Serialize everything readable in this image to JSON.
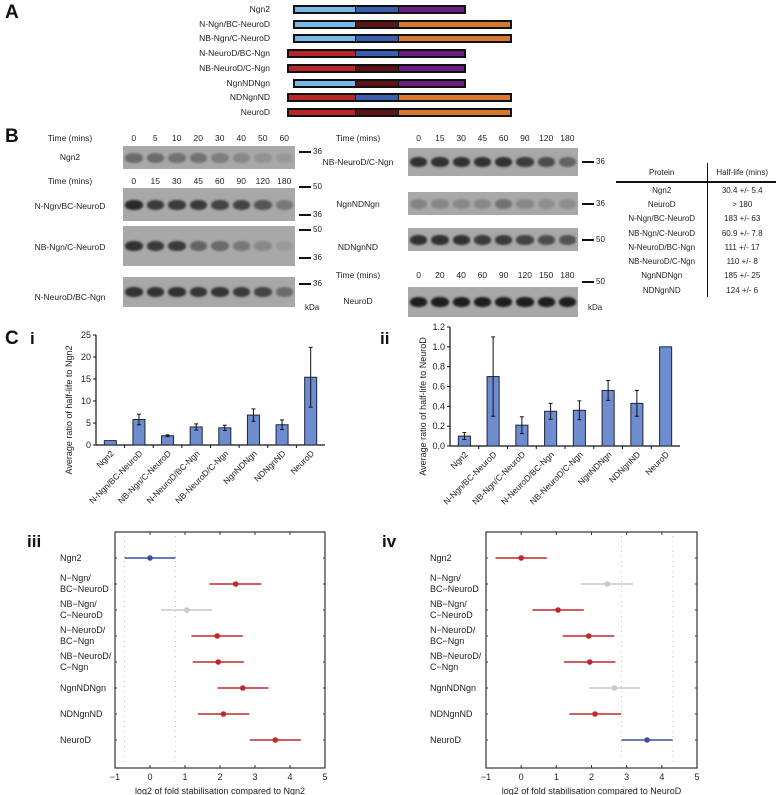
{
  "panels": {
    "A": {
      "letter": "A",
      "constructs": [
        {
          "name": "Ngn2",
          "segments": [
            "ngn_n",
            "ngn_b",
            "ngn_c"
          ]
        },
        {
          "name": "N-Ngn/BC-NeuroD",
          "segments": [
            "ngn_n",
            "nd_b",
            "nd_c"
          ]
        },
        {
          "name": "NB-Ngn/C-NeuroD",
          "segments": [
            "ngn_n",
            "ngn_b",
            "nd_c"
          ]
        },
        {
          "name": "N-NeuroD/BC-Ngn",
          "segments": [
            "nd_n",
            "ngn_b",
            "ngn_c"
          ]
        },
        {
          "name": "NB-NeuroD/C-Ngn",
          "segments": [
            "nd_n",
            "nd_b",
            "ngn_c"
          ]
        },
        {
          "name": "NgnNDNgn",
          "segments": [
            "ngn_n",
            "nd_b",
            "ngn_c"
          ]
        },
        {
          "name": "NDNgnND",
          "segments": [
            "nd_n",
            "ngn_b",
            "nd_c"
          ]
        },
        {
          "name": "NeuroD",
          "segments": [
            "nd_n",
            "nd_b",
            "nd_c"
          ]
        }
      ],
      "domain_colors": {
        "ngn_n": "#7ab8e6",
        "ngn_b": "#3a5fb0",
        "ngn_c": "#6a1e80",
        "nd_n": "#b8262a",
        "nd_b": "#5a1416",
        "nd_c": "#d8782e"
      }
    },
    "B": {
      "letter": "B",
      "time_label": "Time (mins)",
      "kda_label": "kDa",
      "blots": [
        {
          "name": "Ngn2",
          "times": [
            "0",
            "5",
            "10",
            "20",
            "30",
            "40",
            "50",
            "60"
          ],
          "markers": [
            "36"
          ],
          "intensity": [
            0.55,
            0.55,
            0.5,
            0.5,
            0.4,
            0.3,
            0.2,
            0.12
          ]
        },
        {
          "name": "N-Ngn/BC-NeuroD",
          "times": [
            "0",
            "15",
            "30",
            "45",
            "60",
            "90",
            "120",
            "180"
          ],
          "markers": [
            "50",
            "36"
          ],
          "intensity": [
            0.95,
            0.85,
            0.85,
            0.85,
            0.8,
            0.8,
            0.7,
            0.45
          ]
        },
        {
          "name": "NB-Ngn/C-NeuroD",
          "times": [],
          "markers": [
            "50",
            "36"
          ],
          "intensity": [
            0.9,
            0.85,
            0.85,
            0.6,
            0.55,
            0.45,
            0.3,
            0.1
          ]
        },
        {
          "name": "N-NeuroD/BC-Ngn",
          "times": [],
          "markers": [
            "36"
          ],
          "intensity": [
            0.9,
            0.9,
            0.9,
            0.88,
            0.88,
            0.85,
            0.8,
            0.55
          ]
        },
        {
          "name": "NB-NeuroD/C-Ngn",
          "times": [
            "0",
            "15",
            "30",
            "45",
            "60",
            "90",
            "120",
            "180"
          ],
          "markers": [
            "36"
          ],
          "intensity": [
            0.9,
            0.9,
            0.9,
            0.9,
            0.9,
            0.85,
            0.75,
            0.6
          ]
        },
        {
          "name": "NgnNDNgn",
          "times": [],
          "markers": [
            "36"
          ],
          "intensity": [
            0.35,
            0.3,
            0.3,
            0.3,
            0.5,
            0.3,
            0.25,
            0.25
          ]
        },
        {
          "name": "NDNgnND",
          "times": [],
          "markers": [
            "50"
          ],
          "intensity": [
            0.9,
            0.9,
            0.9,
            0.85,
            0.85,
            0.8,
            0.75,
            0.7
          ]
        },
        {
          "name": "NeuroD",
          "times": [
            "0",
            "20",
            "40",
            "60",
            "90",
            "120",
            "150",
            "180"
          ],
          "markers": [
            "50"
          ],
          "intensity": [
            1,
            1,
            1,
            1,
            1,
            1,
            1,
            1
          ]
        }
      ],
      "table": {
        "headers": [
          "Protein",
          "Half-life (mins)"
        ],
        "rows": [
          [
            "Ngn2",
            "30.4 +/- 5.4"
          ],
          [
            "NeuroD",
            "> 180"
          ],
          [
            "N-Ngn/BC-NeuroD",
            "183 +/- 63"
          ],
          [
            "NB-Ngn/C-NeuroD",
            "60.9 +/- 7.8"
          ],
          [
            "N-NeuroD/BC-Ngn",
            "111 +/- 17"
          ],
          [
            "NB-NeuroD/C-Ngn",
            "110 +/- 8"
          ],
          [
            "NgnNDNgn",
            "185 +/- 25"
          ],
          [
            "NDNgnND",
            "124 +/- 6"
          ]
        ]
      }
    },
    "C": {
      "letter": "C",
      "sub_i": "i",
      "sub_ii": "ii",
      "sub_iii": "iii",
      "sub_iv": "iv"
    }
  },
  "chart_data": [
    {
      "id": "Ci",
      "type": "bar",
      "title": "",
      "ylabel": "Average ratio of half-life to Ngn2",
      "xlabel": "",
      "categories": [
        "Ngn2",
        "N-Ngn/BC-NeuroD",
        "NB-Ngn/C-NeuroD",
        "N-NeuroD/BC-Ngn",
        "NB-NeuroD/C-Ngn",
        "NgnNDNgn",
        "NDNgnND",
        "NeuroD"
      ],
      "values": [
        1,
        5.8,
        2.1,
        4.1,
        3.9,
        6.8,
        4.6,
        15.4
      ],
      "errors": [
        0,
        1.2,
        0.2,
        0.7,
        0.6,
        1.4,
        1.1,
        6.8
      ],
      "ylim": [
        0,
        25
      ],
      "yticks": [
        0,
        5,
        10,
        15,
        20,
        25
      ],
      "ytick_labels": [
        "0",
        "5",
        "10",
        "15",
        "20",
        "25"
      ],
      "bar_color": "#6f8ccf",
      "grid": false
    },
    {
      "id": "Cii",
      "type": "bar",
      "title": "",
      "ylabel": "Average ratio of half-life to NeuroD",
      "xlabel": "",
      "categories": [
        "Ngn2",
        "N-Ngn/BC-NeuroD",
        "NB-Ngn/C-NeuroD",
        "N-NeuroD/BC-Ngn",
        "NB-NeuroD/C-Ngn",
        "NgnNDNgn",
        "NDNgnND",
        "NeuroD"
      ],
      "values": [
        0.1,
        0.7,
        0.21,
        0.35,
        0.36,
        0.56,
        0.43,
        1.0
      ],
      "errors": [
        0.035,
        0.4,
        0.085,
        0.08,
        0.095,
        0.1,
        0.13,
        0
      ],
      "ylim": [
        0,
        1.2
      ],
      "yticks": [
        0,
        0.2,
        0.4,
        0.6,
        0.8,
        1.0,
        1.2
      ],
      "ytick_labels": [
        "0.0",
        "0.2",
        "0.4",
        "0.6",
        "0.8",
        "1.0",
        "1.2"
      ],
      "bar_color": "#6f8ccf",
      "grid": false
    },
    {
      "id": "Ciii",
      "type": "scatter",
      "title": "",
      "xlabel": "log2 of fold stabilisation compared to Ngn2",
      "ylabel": "",
      "categories": [
        "Ngn2",
        "N−Ngn/\nBC−NeuroD",
        "NB−Ngn/\nC−NeuroD",
        "N−NeuroD/\nBC−Ngn",
        "NB−NeuroD/\nC−Ngn",
        "NgnNDNgn",
        "NDNgnND",
        "NeuroD"
      ],
      "estimate": [
        0,
        2.45,
        1.05,
        1.92,
        1.95,
        2.65,
        2.1,
        3.58
      ],
      "lower": [
        -0.73,
        1.7,
        0.32,
        1.18,
        1.22,
        1.93,
        1.37,
        2.85
      ],
      "upper": [
        0.73,
        3.18,
        1.78,
        2.65,
        2.68,
        3.38,
        2.84,
        4.31
      ],
      "point_colors": [
        "#3b4fa0",
        "#c0282c",
        "#c8c8c8",
        "#c0282c",
        "#c0282c",
        "#c0282c",
        "#c0282c",
        "#c0282c"
      ],
      "reference_lines": [
        -0.73,
        0.73
      ],
      "xlim": [
        -1,
        5
      ],
      "xticks": [
        -1,
        0,
        1,
        2,
        3,
        4,
        5
      ],
      "xtick_labels": [
        "−1",
        "0",
        "1",
        "2",
        "3",
        "4",
        "5"
      ],
      "grid": false
    },
    {
      "id": "Civ",
      "type": "scatter",
      "title": "",
      "xlabel": "log2 of fold stabilisation compared to NeuroD",
      "ylabel": "",
      "categories": [
        "Ngn2",
        "N−Ngn/\nBC−NeuroD",
        "NB−Ngn/\nC−NeuroD",
        "N−NeuroD/\nBC−Ngn",
        "NB−NeuroD/\nC−Ngn",
        "NgnNDNgn",
        "NDNgnND",
        "NeuroD"
      ],
      "estimate": [
        0,
        2.45,
        1.05,
        1.92,
        1.95,
        2.65,
        2.1,
        3.58
      ],
      "lower": [
        -0.73,
        1.7,
        0.32,
        1.18,
        1.22,
        1.93,
        1.37,
        2.85
      ],
      "upper": [
        0.73,
        3.18,
        1.78,
        2.65,
        2.68,
        3.38,
        2.84,
        4.31
      ],
      "point_colors": [
        "#c0282c",
        "#c8c8c8",
        "#c0282c",
        "#c0282c",
        "#c0282c",
        "#c8c8c8",
        "#c0282c",
        "#3b4fa0"
      ],
      "reference_lines": [
        2.85,
        4.31
      ],
      "xlim": [
        -1,
        5
      ],
      "xticks": [
        -1,
        0,
        1,
        2,
        3,
        4,
        5
      ],
      "xtick_labels": [
        "−1",
        "0",
        "1",
        "2",
        "3",
        "4",
        "5"
      ],
      "grid": false
    }
  ]
}
